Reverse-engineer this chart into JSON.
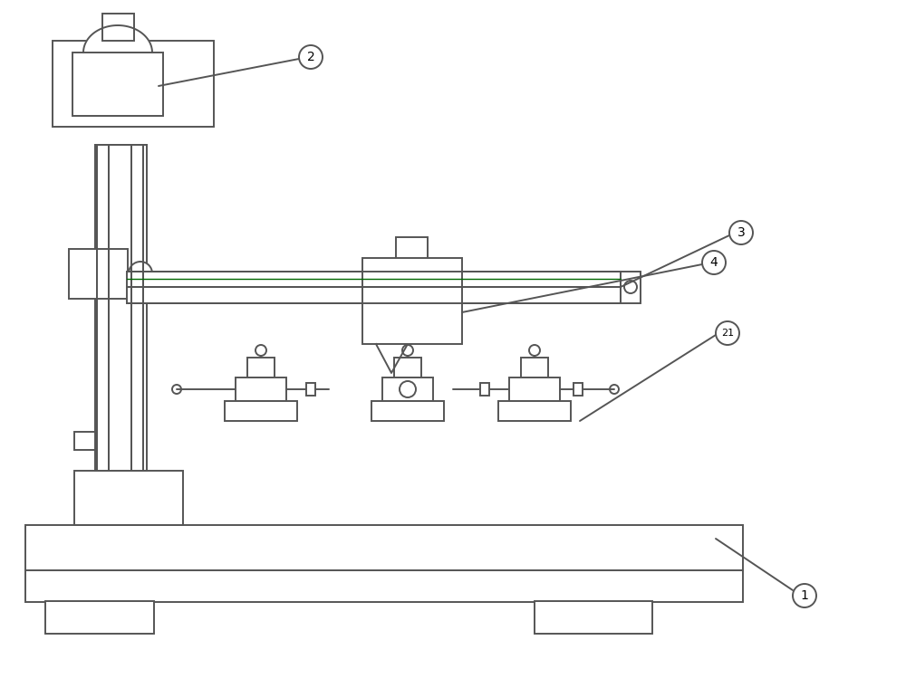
{
  "bg_color": "#ffffff",
  "line_color": "#555555",
  "line_width": 1.4,
  "figsize": [
    10.0,
    7.6
  ],
  "dpi": 100
}
